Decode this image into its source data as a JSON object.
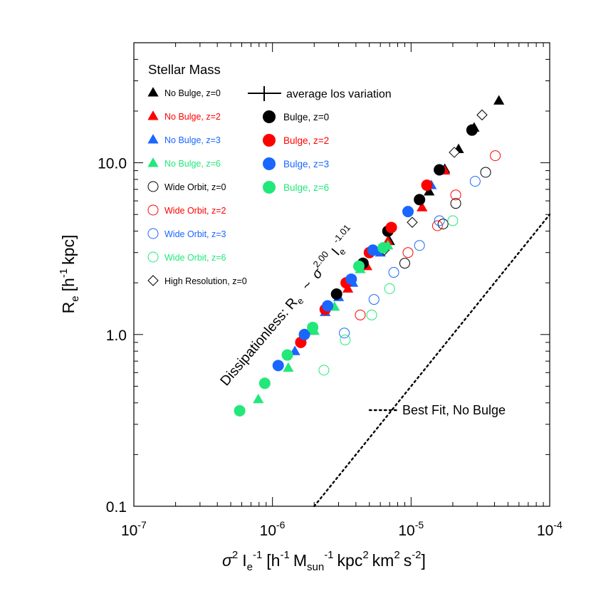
{
  "chart_data": {
    "type": "scatter",
    "xscale": "log",
    "yscale": "log",
    "xlim": [
      1e-07,
      0.0001
    ],
    "ylim": [
      0.1,
      50
    ],
    "x_tick_values": [
      1e-07,
      1e-06,
      1e-05,
      0.0001
    ],
    "x_tick_labels": [
      {
        "base": "10",
        "exp": "-7"
      },
      {
        "base": "10",
        "exp": "-6"
      },
      {
        "base": "10",
        "exp": "-5"
      },
      {
        "base": "10",
        "exp": "-4"
      }
    ],
    "y_tick_values": [
      0.1,
      1.0,
      10.0
    ],
    "y_tick_labels": [
      "0.1",
      "1.0",
      "10.0"
    ],
    "xlabel": "σ² I_e⁻¹ [h⁻¹ M_sun⁻¹ kpc² km² s⁻²]",
    "ylabel": "R_e [h⁻¹ kpc]",
    "legend_title": "Stellar Mass",
    "los_label": "average los variation",
    "fit_label": "Best Fit, No Bulge",
    "annotation": "Dissipationless: R_e ~ σ^2.00 I_e^-1.01",
    "annotation_parts": {
      "text": "Dissipationless: R",
      "sub_e1": "e",
      "tilde": "~",
      "sigma": "σ",
      "sigma_exp": "2.00",
      "i": "I",
      "sub_e2": "e",
      "i_exp": "-1.01"
    },
    "best_fit": {
      "label": "Best Fit, No Bulge",
      "coef": 50000,
      "slope": 1.0
    },
    "colors": {
      "z0": "#000000",
      "z2": "#ff0000",
      "z3": "#1a66ff",
      "z6": "#22e87a"
    },
    "series": [
      {
        "name": "No Bulge, z=0",
        "marker": "triangle",
        "filled": true,
        "color": "#000000",
        "x": [
          7e-06,
          1.35e-05,
          1.75e-05,
          2.2e-05,
          2.85e-05,
          4.3e-05
        ],
        "y": [
          3.5,
          6.8,
          9.2,
          12.0,
          16.0,
          23.0
        ]
      },
      {
        "name": "No Bulge, z=2",
        "marker": "triangle",
        "filled": true,
        "color": "#ff0000",
        "x": [
          1.9e-06,
          3.5e-06,
          4.8e-06,
          6.8e-06,
          1.2e-05,
          1.75e-05
        ],
        "y": [
          1.05,
          1.85,
          2.5,
          3.5,
          5.5,
          9.0
        ]
      },
      {
        "name": "No Bulge, z=3",
        "marker": "triangle",
        "filled": true,
        "color": "#1a66ff",
        "x": [
          1.45e-06,
          2.4e-06,
          3e-06,
          3.8e-06,
          6e-06,
          1.4e-05
        ],
        "y": [
          0.8,
          1.35,
          1.65,
          2.0,
          3.0,
          7.4
        ]
      },
      {
        "name": "No Bulge, z=6",
        "marker": "triangle",
        "filled": true,
        "color": "#22e87a",
        "x": [
          7.9e-07,
          1.3e-06,
          2e-06,
          2.8e-06,
          4.3e-06,
          6.8e-06
        ],
        "y": [
          0.42,
          0.64,
          1.05,
          1.45,
          2.4,
          3.3
        ]
      },
      {
        "name": "Wide Orbit, z=0",
        "marker": "circle",
        "filled": false,
        "color": "#000000",
        "x": [
          9e-06,
          1.7e-05,
          2.1e-05,
          3.45e-05
        ],
        "y": [
          2.6,
          4.4,
          5.8,
          8.8
        ]
      },
      {
        "name": "Wide Orbit, z=2",
        "marker": "circle",
        "filled": false,
        "color": "#ff0000",
        "x": [
          4.3e-06,
          9.5e-06,
          1.55e-05,
          2.1e-05,
          4.05e-05
        ],
        "y": [
          1.3,
          3.0,
          4.3,
          6.5,
          11.0
        ]
      },
      {
        "name": "Wide Orbit, z=3",
        "marker": "circle",
        "filled": false,
        "color": "#1a66ff",
        "x": [
          3.3e-06,
          5.4e-06,
          7.5e-06,
          1.15e-05,
          1.6e-05,
          2.9e-05
        ],
        "y": [
          1.02,
          1.6,
          2.3,
          3.3,
          4.6,
          7.8
        ]
      },
      {
        "name": "Wide Orbit, z=6",
        "marker": "circle",
        "filled": false,
        "color": "#22e87a",
        "x": [
          2.35e-06,
          3.35e-06,
          5.2e-06,
          7e-06,
          2e-05
        ],
        "y": [
          0.62,
          0.93,
          1.3,
          1.85,
          4.6
        ]
      },
      {
        "name": "High Resolution, z=0",
        "marker": "diamond",
        "filled": false,
        "color": "#000000",
        "x": [
          6.4e-06,
          1.02e-05,
          2.05e-05,
          3.25e-05
        ],
        "y": [
          3.1,
          4.5,
          11.5,
          19.0
        ]
      },
      {
        "name": "Bulge, z=0",
        "marker": "circle",
        "filled": true,
        "color": "#000000",
        "x": [
          2.9e-06,
          4.5e-06,
          6.8e-06,
          1.15e-05,
          1.6e-05,
          2.75e-05
        ],
        "y": [
          1.72,
          2.6,
          4.0,
          6.1,
          9.1,
          15.5
        ]
      },
      {
        "name": "Bulge, z=2",
        "marker": "circle",
        "filled": true,
        "color": "#ff0000",
        "x": [
          1.6e-06,
          2.4e-06,
          3.4e-06,
          5e-06,
          7.2e-06,
          1.3e-05
        ],
        "y": [
          0.9,
          1.4,
          2.0,
          3.0,
          4.2,
          7.4
        ]
      },
      {
        "name": "Bulge, z=3",
        "marker": "circle",
        "filled": true,
        "color": "#1a66ff",
        "x": [
          1.1e-06,
          1.7e-06,
          2.5e-06,
          3.7e-06,
          5.3e-06,
          9.5e-06
        ],
        "y": [
          0.66,
          1.0,
          1.47,
          2.1,
          3.1,
          5.2
        ]
      },
      {
        "name": "Bulge, z=6",
        "marker": "circle",
        "filled": true,
        "color": "#22e87a",
        "x": [
          5.8e-07,
          8.8e-07,
          1.28e-06,
          1.95e-06,
          4.2e-06,
          6.3e-06
        ],
        "y": [
          0.36,
          0.52,
          0.76,
          1.1,
          2.5,
          3.2
        ]
      }
    ],
    "legend_left": [
      0,
      1,
      2,
      3,
      4,
      5,
      6,
      7,
      8
    ],
    "legend_right": [
      9,
      10,
      11,
      12
    ]
  }
}
